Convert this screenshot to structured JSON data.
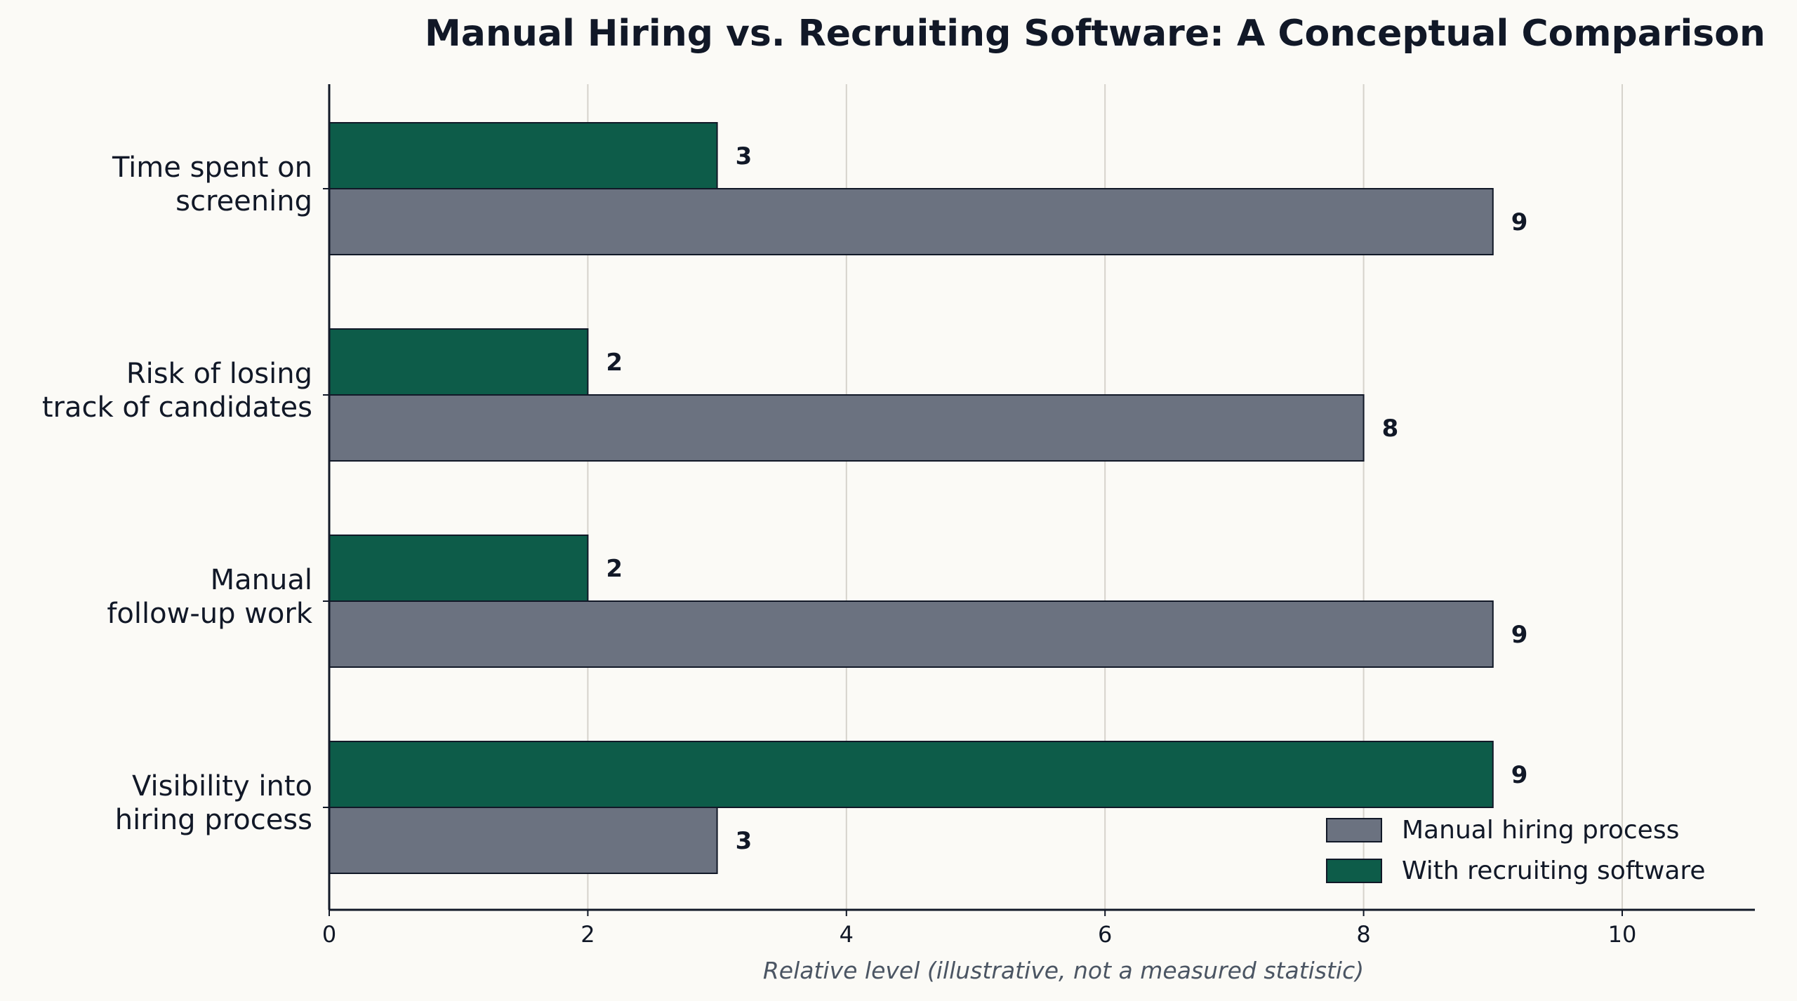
{
  "chart_data": {
    "type": "bar",
    "orientation": "horizontal",
    "title": "Manual Hiring vs. Recruiting Software: A Conceptual Comparison",
    "xlabel": "Relative level (illustrative, not a measured statistic)",
    "ylabel": "",
    "xlim": [
      0,
      11
    ],
    "xticks": [
      0,
      2,
      4,
      6,
      8,
      10
    ],
    "grid": "vertical",
    "legend_position": "bottom-right",
    "categories": [
      [
        "Time spent on",
        "screening"
      ],
      [
        "Risk of losing",
        "track of candidates"
      ],
      [
        "Manual",
        "follow-up work"
      ],
      [
        "Visibility into",
        "hiring process"
      ]
    ],
    "series": [
      {
        "name": "Manual hiring process",
        "color": "#6b7280",
        "values": [
          9,
          8,
          9,
          3
        ]
      },
      {
        "name": "With recruiting software",
        "color": "#0d5c49",
        "values": [
          3,
          2,
          2,
          9
        ]
      }
    ]
  }
}
